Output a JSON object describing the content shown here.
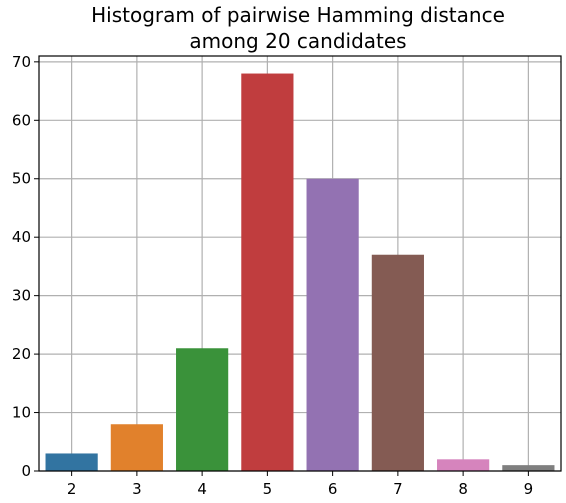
{
  "chart_data": {
    "type": "bar",
    "title": "Histogram of pairwise Hamming distance among 20 candidates",
    "title_lines": [
      "Histogram of pairwise Hamming distance",
      "among 20 candidates"
    ],
    "xlabel": "",
    "ylabel": "",
    "categories": [
      "2",
      "3",
      "4",
      "5",
      "6",
      "7",
      "8",
      "9"
    ],
    "values": [
      3,
      8,
      21,
      68,
      50,
      37,
      2,
      1
    ],
    "colors": [
      "#3274a1",
      "#e1812c",
      "#3a923a",
      "#c03d3e",
      "#9372b2",
      "#845b53",
      "#d684bd",
      "#7f7f7f"
    ],
    "ylim": [
      0,
      71
    ],
    "yticks": [
      0,
      10,
      20,
      30,
      40,
      50,
      60,
      70
    ],
    "grid": true
  }
}
